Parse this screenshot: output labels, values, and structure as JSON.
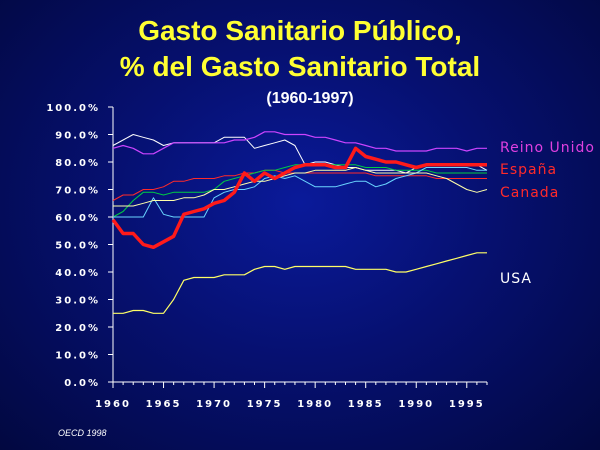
{
  "header": {
    "title_line1": "Gasto Sanitario Público,",
    "title_line2": "% del Gasto Sanitario Total",
    "subtitle": "(1960-1997)",
    "source": "OECD 1998"
  },
  "chart_data": {
    "type": "line",
    "title": "Gasto Sanitario Público, % del Gasto Sanitario Total",
    "subtitle": "(1960-1997)",
    "xlim": [
      1960,
      1997
    ],
    "ylim": [
      0,
      100
    ],
    "x_ticks": [
      "1960",
      "1965",
      "1970",
      "1975",
      "1980",
      "1985",
      "1990",
      "1995"
    ],
    "y_ticks": [
      "0.0%",
      "10.0%",
      "20.0%",
      "30.0%",
      "40.0%",
      "50.0%",
      "60.0%",
      "70.0%",
      "80.0%",
      "90.0%",
      "100.0%"
    ],
    "grid": false,
    "x": [
      1960,
      1961,
      1962,
      1963,
      1964,
      1965,
      1966,
      1967,
      1968,
      1969,
      1970,
      1971,
      1972,
      1973,
      1974,
      1975,
      1976,
      1977,
      1978,
      1979,
      1980,
      1981,
      1982,
      1983,
      1984,
      1985,
      1986,
      1987,
      1988,
      1989,
      1990,
      1991,
      1992,
      1993,
      1994,
      1995,
      1996,
      1997
    ],
    "series": [
      {
        "name": "Reino Unido",
        "color": "#cc44ff",
        "width": 1.2,
        "labeled": true,
        "values": [
          85,
          86,
          85,
          83,
          83,
          85,
          87,
          87,
          87,
          87,
          87,
          87,
          88,
          88,
          89,
          91,
          91,
          90,
          90,
          90,
          89,
          89,
          88,
          87,
          87,
          86,
          85,
          85,
          84,
          84,
          84,
          84,
          85,
          85,
          85,
          84,
          85,
          85
        ]
      },
      {
        "name": "España",
        "color": "#ff1a1a",
        "width": 3.5,
        "labeled": true,
        "values": [
          59,
          54,
          54,
          50,
          49,
          51,
          53,
          61,
          62,
          63,
          65,
          66,
          69,
          76,
          73,
          76,
          74,
          76,
          78,
          79,
          79,
          79,
          78,
          78,
          85,
          82,
          81,
          80,
          80,
          79,
          78,
          79,
          79,
          79,
          79,
          79,
          79,
          79
        ]
      },
      {
        "name": "Canada",
        "color": "#ff2a2a",
        "width": 1,
        "labeled": true,
        "values": [
          66,
          68,
          68,
          70,
          70,
          71,
          73,
          73,
          74,
          74,
          74,
          75,
          75,
          76,
          76,
          77,
          77,
          76,
          76,
          76,
          76,
          76,
          76,
          76,
          76,
          76,
          75,
          75,
          75,
          75,
          75,
          75,
          74,
          74,
          74,
          74,
          74,
          74
        ]
      },
      {
        "name": "USA",
        "color": "#ffff66",
        "width": 1.2,
        "labeled": true,
        "values": [
          25,
          25,
          26,
          26,
          25,
          25,
          30,
          37,
          38,
          38,
          38,
          39,
          39,
          39,
          41,
          42,
          42,
          41,
          42,
          42,
          42,
          42,
          42,
          42,
          41,
          41,
          41,
          41,
          40,
          40,
          41,
          42,
          43,
          44,
          45,
          46,
          47,
          47
        ]
      },
      {
        "name": "",
        "color": "#ffffff",
        "width": 1,
        "labeled": false,
        "values": [
          86,
          88,
          90,
          89,
          88,
          86,
          87,
          87,
          87,
          87,
          87,
          89,
          89,
          89,
          85,
          86,
          87,
          88,
          86,
          79,
          80,
          80,
          79,
          78,
          78,
          77,
          77,
          77,
          77,
          76,
          78,
          79,
          79,
          79,
          79,
          79,
          79,
          77
        ]
      },
      {
        "name": "",
        "color": "#00cc44",
        "width": 1,
        "labeled": false,
        "values": [
          60,
          62,
          66,
          69,
          69,
          68,
          69,
          69,
          69,
          69,
          70,
          73,
          74,
          75,
          76,
          77,
          77,
          78,
          79,
          79,
          79,
          79,
          79,
          79,
          79,
          78,
          78,
          78,
          77,
          77,
          77,
          77,
          76,
          76,
          76,
          76,
          76,
          76
        ]
      },
      {
        "name": "",
        "color": "#6ad5ff",
        "width": 1,
        "labeled": false,
        "values": [
          60,
          60,
          60,
          60,
          67,
          61,
          60,
          60,
          60,
          60,
          67,
          69,
          70,
          70,
          71,
          74,
          75,
          74,
          75,
          73,
          71,
          71,
          71,
          72,
          73,
          73,
          71,
          72,
          74,
          75,
          76,
          78,
          78,
          78,
          78,
          78,
          77,
          77
        ]
      },
      {
        "name": "",
        "color": "#ffffaa",
        "width": 1,
        "labeled": false,
        "values": [
          64,
          64,
          64,
          65,
          66,
          66,
          66,
          67,
          67,
          68,
          70,
          70,
          71,
          72,
          73,
          73,
          74,
          75,
          76,
          76,
          77,
          77,
          77,
          77,
          78,
          77,
          76,
          76,
          76,
          76,
          76,
          76,
          75,
          74,
          72,
          70,
          69,
          70
        ]
      }
    ]
  }
}
